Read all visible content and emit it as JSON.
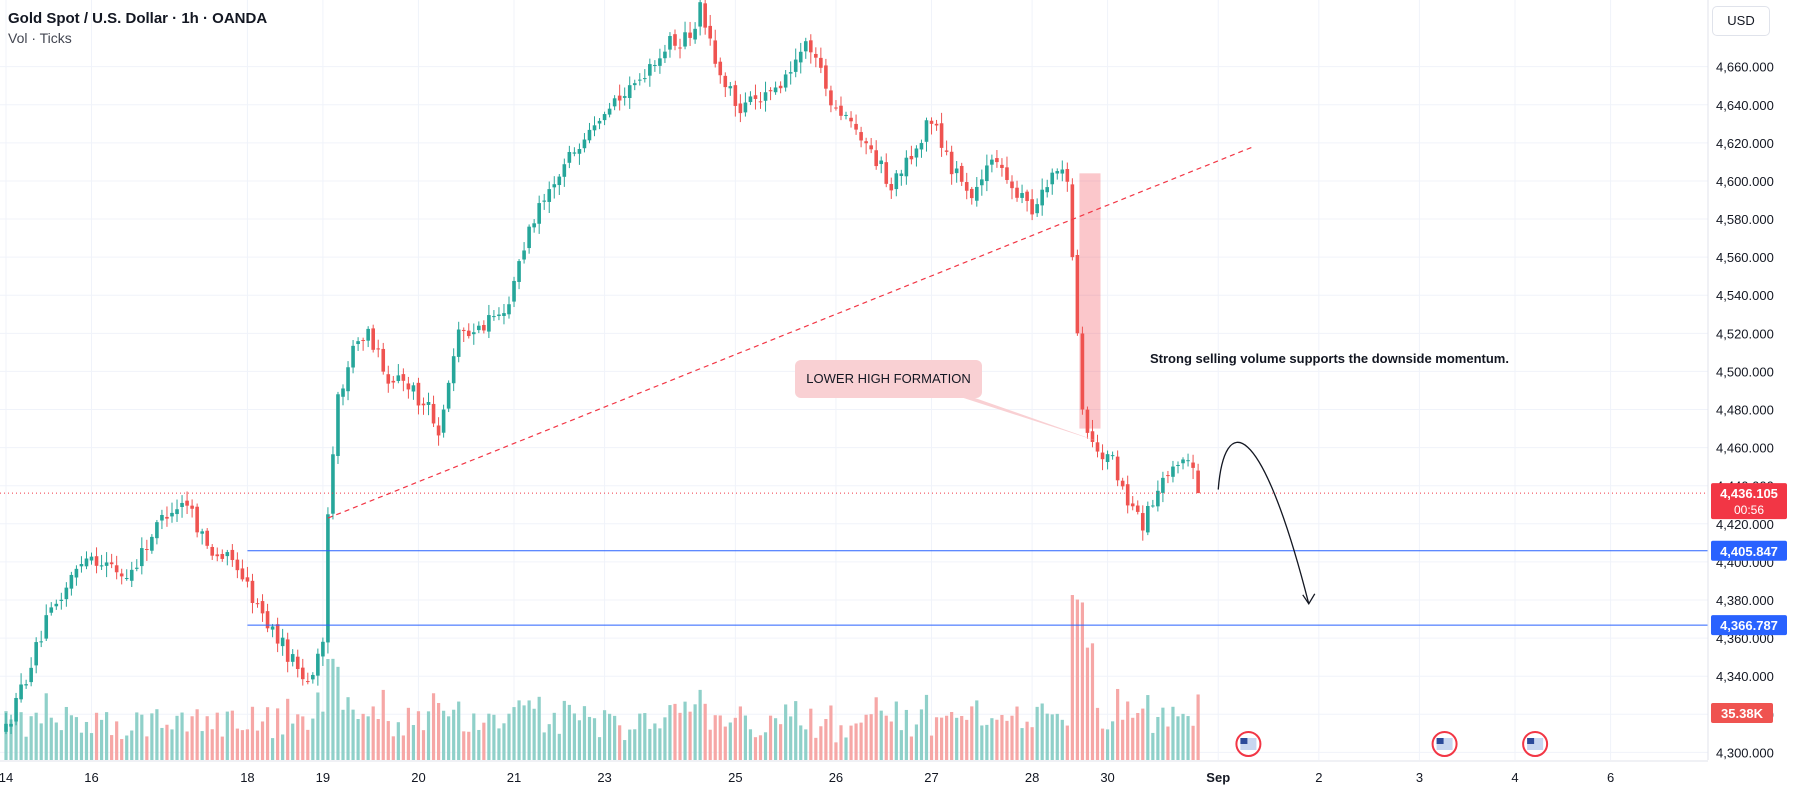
{
  "header": {
    "title": "Gold Spot / U.S. Dollar · 1h · OANDA",
    "subtitle": "Vol · Ticks"
  },
  "currency_button": "USD",
  "colors": {
    "up": "#26a69a",
    "down": "#ef5350",
    "up_volume": "#8fd0c9",
    "down_volume": "#f6a7a6",
    "level_line": "#2962ff",
    "trend_line": "#f23645",
    "price_badge": "#f23645",
    "level_badge": "#2962ff",
    "grid": "#f0f3fa"
  },
  "annotations": {
    "callout_label": "LOWER HIGH FORMATION",
    "note": "Strong selling volume supports the downside momentum."
  },
  "chart_data": {
    "type": "candlestick",
    "symbol": "XAUUSD",
    "interval": "1h",
    "y_axis": {
      "range": [
        4296,
        4695
      ],
      "tick_labels": [
        "4,660.000",
        "4,640.000",
        "4,620.000",
        "4,600.000",
        "4,580.000",
        "4,560.000",
        "4,540.000",
        "4,520.000",
        "4,500.000",
        "4,480.000",
        "4,460.000",
        "4,440.000",
        "4,420.000",
        "4,400.000",
        "4,380.000",
        "4,360.000",
        "4,340.000",
        "4,320.000",
        "4,300.000"
      ],
      "tick_values": [
        4660,
        4640,
        4620,
        4600,
        4580,
        4560,
        4540,
        4520,
        4500,
        4480,
        4460,
        4440,
        4420,
        4400,
        4380,
        4360,
        4340,
        4320,
        4300
      ]
    },
    "x_axis": {
      "tick_labels": [
        "14",
        "16",
        "18",
        "19",
        "20",
        "21",
        "23",
        "25",
        "26",
        "27",
        "28",
        "30",
        "Sep",
        "2",
        "3",
        "4",
        "6"
      ],
      "tick_index": [
        0,
        17,
        48,
        63,
        82,
        101,
        119,
        145,
        165,
        184,
        204,
        219,
        241,
        261,
        281,
        300,
        319
      ]
    },
    "price_path": [
      [
        0,
        4312
      ],
      [
        8,
        4368
      ],
      [
        16,
        4405
      ],
      [
        24,
        4392
      ],
      [
        32,
        4427
      ],
      [
        36,
        4432
      ],
      [
        40,
        4408
      ],
      [
        46,
        4398
      ],
      [
        50,
        4376
      ],
      [
        56,
        4352
      ],
      [
        60,
        4338
      ],
      [
        63,
        4354
      ],
      [
        64,
        4425
      ],
      [
        66,
        4488
      ],
      [
        70,
        4518
      ],
      [
        72,
        4522
      ],
      [
        76,
        4496
      ],
      [
        80,
        4492
      ],
      [
        84,
        4480
      ],
      [
        86,
        4466
      ],
      [
        90,
        4522
      ],
      [
        95,
        4522
      ],
      [
        100,
        4538
      ],
      [
        104,
        4576
      ],
      [
        108,
        4592
      ],
      [
        112,
        4612
      ],
      [
        116,
        4630
      ],
      [
        120,
        4642
      ],
      [
        124,
        4646
      ],
      [
        128,
        4662
      ],
      [
        132,
        4672
      ],
      [
        136,
        4677
      ],
      [
        138,
        4690
      ],
      [
        142,
        4652
      ],
      [
        146,
        4640
      ],
      [
        150,
        4640
      ],
      [
        154,
        4650
      ],
      [
        158,
        4667
      ],
      [
        160,
        4672
      ],
      [
        164,
        4642
      ],
      [
        168,
        4632
      ],
      [
        172,
        4616
      ],
      [
        176,
        4597
      ],
      [
        180,
        4614
      ],
      [
        184,
        4634
      ],
      [
        188,
        4608
      ],
      [
        192,
        4592
      ],
      [
        196,
        4614
      ],
      [
        200,
        4598
      ],
      [
        204,
        4584
      ],
      [
        208,
        4604
      ],
      [
        210,
        4608
      ],
      [
        211,
        4604
      ],
      [
        212,
        4560
      ],
      [
        214,
        4480
      ],
      [
        216,
        4460
      ],
      [
        220,
        4452
      ],
      [
        223,
        4430
      ],
      [
        226,
        4420
      ],
      [
        230,
        4440
      ],
      [
        234,
        4456
      ],
      [
        237,
        4440
      ]
    ],
    "volume_scale": "relative",
    "last_volume": "35.38K",
    "levels": [
      {
        "price": 4405.847,
        "label": "4,405.847"
      },
      {
        "price": 4366.787,
        "label": "4,366.787"
      }
    ],
    "last_price": {
      "price": 4436.105,
      "label": "4,436.105",
      "countdown": "00:56"
    },
    "trendline": {
      "from": {
        "index": 64,
        "price": 4423
      },
      "to": {
        "index": 248,
        "price": 4618
      },
      "style": "dashed"
    },
    "drop_highlight": {
      "from_index": 214,
      "to_index": 217,
      "high": 4604,
      "low": 4470
    },
    "projection_arrow": {
      "start": {
        "index": 241,
        "price": 4438
      },
      "peak": {
        "index": 245,
        "price": 4463
      },
      "end": {
        "index": 259,
        "price": 4378
      }
    },
    "grid": true
  },
  "events": [
    "us-flag-icon",
    "us-flag-icon",
    "us-flag-icon"
  ]
}
